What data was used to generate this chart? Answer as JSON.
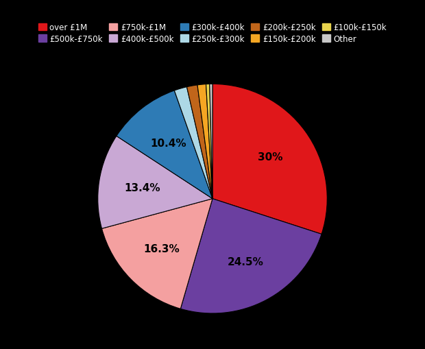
{
  "labels": [
    "over £1M",
    "£500k-£750k",
    "£750k-£1M",
    "£400k-£500k",
    "£300k-£400k",
    "£250k-£300k",
    "£200k-£250k",
    "£150k-£200k",
    "£100k-£150k",
    "Other"
  ],
  "values": [
    30.0,
    24.5,
    16.3,
    13.4,
    10.4,
    1.8,
    1.5,
    1.2,
    0.5,
    0.4
  ],
  "colors": [
    "#e0171a",
    "#6b3fa0",
    "#f4a0a0",
    "#c9a8d4",
    "#2e7bb5",
    "#add8e6",
    "#c0651a",
    "#f5a623",
    "#e8d44d",
    "#c8c8c8"
  ],
  "pct_labels": [
    "30%",
    "24.5%",
    "16.3%",
    "13.4%",
    "10.4%",
    "",
    "",
    "",
    "",
    ""
  ],
  "legend_labels": [
    "over £1M",
    "£500k-£750k",
    "£750k-£1M",
    "£400k-£500k",
    "£300k-£400k",
    "£250k-£300k",
    "£200k-£250k",
    "£150k-£200k",
    "£100k-£150k",
    "Other"
  ],
  "background_color": "#000000",
  "text_color": "#ffffff",
  "startangle": 90
}
